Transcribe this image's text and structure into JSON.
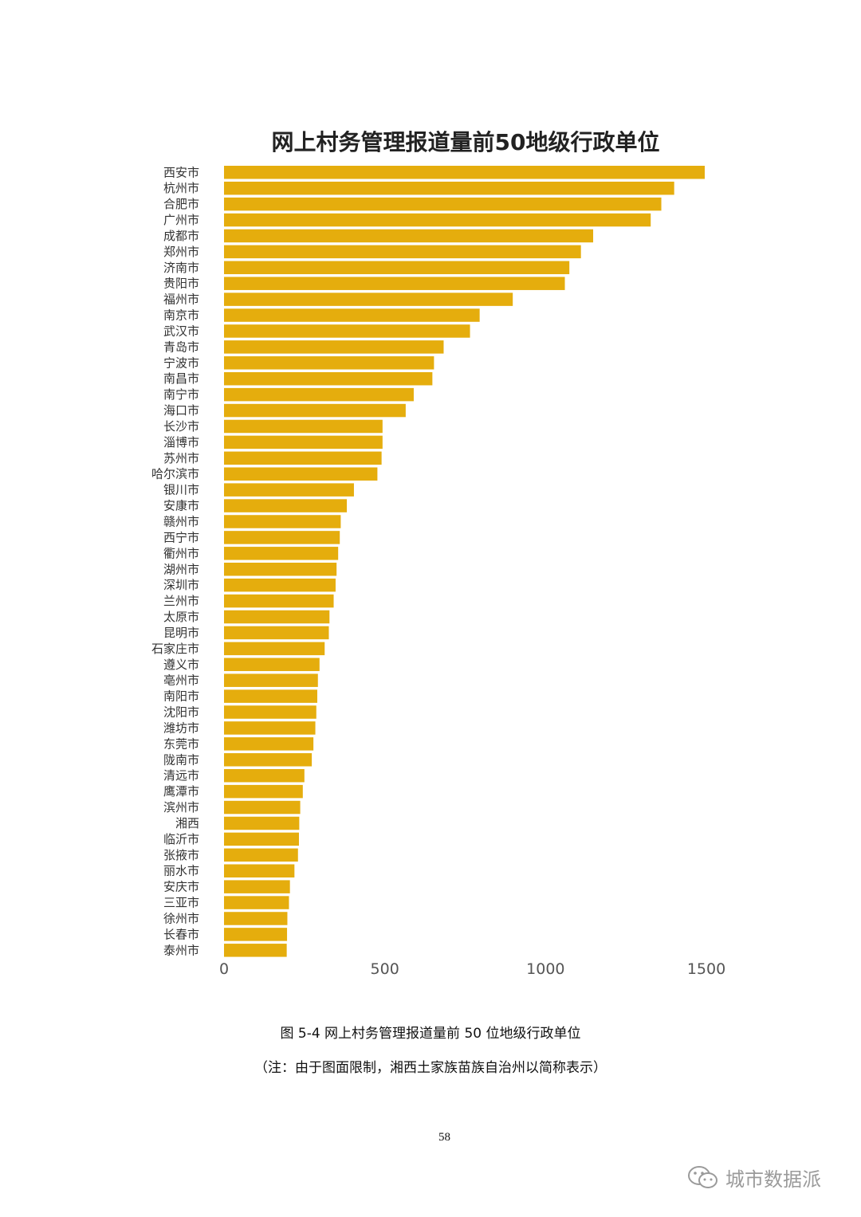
{
  "chart_data": {
    "type": "bar",
    "orientation": "horizontal",
    "title": "网上村务管理报道量前50地级行政单位",
    "bar_color": "#E5AD0D",
    "xlim": [
      0,
      1500
    ],
    "xticks": [
      0,
      500,
      1000,
      1500
    ],
    "grid": false,
    "legend": "none",
    "categories": [
      "西安市",
      "杭州市",
      "合肥市",
      "广州市",
      "成都市",
      "郑州市",
      "济南市",
      "贵阳市",
      "福州市",
      "南京市",
      "武汉市",
      "青岛市",
      "宁波市",
      "南昌市",
      "南宁市",
      "海口市",
      "长沙市",
      "淄博市",
      "苏州市",
      "哈尔滨市",
      "银川市",
      "安康市",
      "赣州市",
      "西宁市",
      "衢州市",
      "湖州市",
      "深圳市",
      "兰州市",
      "太原市",
      "昆明市",
      "石家庄市",
      "遵义市",
      "亳州市",
      "南阳市",
      "沈阳市",
      "潍坊市",
      "东莞市",
      "陇南市",
      "清远市",
      "鹰潭市",
      "滨州市",
      "湘西",
      "临沂市",
      "张掖市",
      "丽水市",
      "安庆市",
      "三亚市",
      "徐州市",
      "长春市",
      "泰州市"
    ],
    "values": [
      1495,
      1400,
      1360,
      1327,
      1148,
      1110,
      1074,
      1060,
      898,
      795,
      765,
      683,
      653,
      648,
      590,
      565,
      493,
      493,
      490,
      477,
      404,
      382,
      363,
      360,
      355,
      350,
      347,
      341,
      328,
      326,
      313,
      297,
      292,
      290,
      287,
      284,
      278,
      273,
      250,
      245,
      237,
      234,
      233,
      230,
      219,
      205,
      202,
      197,
      196,
      195
    ]
  },
  "caption": {
    "figure": "图 5-4 网上村务管理报道量前 50 位地级行政单位",
    "note": "（注：由于图面限制，湘西土家族苗族自治州以简称表示）"
  },
  "page_number": "58",
  "watermark": {
    "text": "城市数据派",
    "icon": "wechat-icon"
  }
}
